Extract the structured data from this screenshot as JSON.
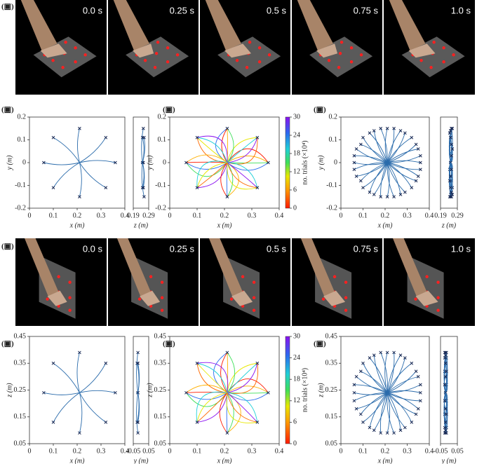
{
  "panels": [
    "(▣)",
    "(▣)",
    "(▣)",
    "(▣)",
    "(▣)",
    "(▣)",
    "(▣)",
    "(▣)"
  ],
  "frame_strips": [
    {
      "times": [
        "0.0 s",
        "0.25 s",
        "0.5 s",
        "0.75 s",
        "1.0 s"
      ]
    },
    {
      "times": [
        "0.0 s",
        "0.25 s",
        "0.5 s",
        "0.75 s",
        "1.0 s"
      ]
    }
  ],
  "chart_data": [
    {
      "type": "scatter",
      "xlabel": "x (m)",
      "ylabel": "y (m)",
      "xlim": [
        0,
        0.4
      ],
      "xticks": [
        0,
        0.1,
        0.2,
        0.3,
        0.4
      ],
      "ylim": [
        -0.2,
        0.2
      ],
      "yticks": [
        -0.2,
        -0.1,
        0,
        0.1,
        0.2
      ],
      "color": "#2a6bab",
      "start": {
        "x": 0.21,
        "y": 0
      },
      "targets": {
        "x": [
          0.36,
          0.32,
          0.21,
          0.1,
          0.06,
          0.1,
          0.21,
          0.32
        ],
        "values": [
          0,
          0.11,
          0.15,
          0.11,
          0,
          -0.11,
          -0.15,
          -0.11
        ]
      }
    },
    {
      "type": "scatter",
      "xlabel": "z (m)",
      "xlim": [
        0.19,
        0.29
      ],
      "xticks": [
        0.19,
        0.29
      ],
      "ylim": [
        -0.2,
        0.2
      ],
      "color": "#2a6bab",
      "start": {
        "x": 0.25,
        "y": 0
      },
      "targets": {
        "x": [
          0.255,
          0.26,
          0.255,
          0.25,
          0.25,
          0.255,
          0.26,
          0.25
        ],
        "values": [
          0,
          0.11,
          0.15,
          0.11,
          0,
          -0.11,
          -0.15,
          -0.11
        ]
      }
    },
    {
      "type": "scatter",
      "xlabel": "x (m)",
      "ylabel": "y (m)",
      "xlim": [
        0,
        0.4
      ],
      "xticks": [
        0,
        0.1,
        0.2,
        0.3,
        0.4
      ],
      "ylim": [
        -0.2,
        0.2
      ],
      "yticks": [
        -0.2,
        -0.1,
        0,
        0.1,
        0.2
      ],
      "color": "#2a6bab",
      "multicolor": true,
      "colorbar": {
        "label": "no. trials (×10⁴)",
        "lim": [
          0,
          30
        ],
        "ticks": [
          0,
          6,
          12,
          18,
          24,
          30
        ]
      },
      "start": {
        "x": 0.21,
        "y": 0
      },
      "targets": {
        "x": [
          0.36,
          0.32,
          0.21,
          0.1,
          0.06,
          0.1,
          0.21,
          0.32
        ],
        "values": [
          0,
          0.11,
          0.15,
          0.11,
          0,
          -0.11,
          -0.15,
          -0.11
        ]
      }
    },
    {
      "type": "scatter",
      "xlabel": "x (m)",
      "ylabel": "y (m)",
      "xlim": [
        0,
        0.4
      ],
      "xticks": [
        0,
        0.1,
        0.2,
        0.3,
        0.4
      ],
      "ylim": [
        -0.2,
        0.2
      ],
      "yticks": [
        -0.2,
        -0.1,
        0,
        0.1,
        0.2
      ],
      "color": "#2a6bab",
      "start": {
        "x": 0.21,
        "y": 0
      },
      "targets": {
        "x": [
          0.36,
          0.36,
          0.35,
          0.34,
          0.32,
          0.29,
          0.27,
          0.24,
          0.21,
          0.18,
          0.15,
          0.13,
          0.1,
          0.09,
          0.07,
          0.06,
          0.06,
          0.06,
          0.07,
          0.09,
          0.1,
          0.13,
          0.15,
          0.18,
          0.21,
          0.24,
          0.27,
          0.29,
          0.32,
          0.34,
          0.35,
          0.36
        ],
        "values": [
          0,
          0.03,
          0.06,
          0.08,
          0.11,
          0.13,
          0.14,
          0.15,
          0.15,
          0.15,
          0.14,
          0.13,
          0.11,
          0.08,
          0.06,
          0.03,
          0,
          -0.03,
          -0.06,
          -0.08,
          -0.11,
          -0.13,
          -0.14,
          -0.15,
          -0.15,
          -0.15,
          -0.14,
          -0.13,
          -0.11,
          -0.08,
          -0.06,
          -0.03
        ]
      }
    },
    {
      "type": "scatter",
      "xlabel": "z (m)",
      "xlim": [
        0.19,
        0.29
      ],
      "xticks": [
        0.19,
        0.29
      ],
      "ylim": [
        -0.2,
        0.2
      ],
      "color": "#2a6bab",
      "start": {
        "x": 0.25,
        "y": 0
      },
      "targets": {
        "x": [
          0.25,
          0.255,
          0.26,
          0.255,
          0.25,
          0.245,
          0.25,
          0.255,
          0.26,
          0.255,
          0.25,
          0.245,
          0.25,
          0.255,
          0.26,
          0.255,
          0.25,
          0.245,
          0.25,
          0.255,
          0.26,
          0.255,
          0.25,
          0.245,
          0.25,
          0.255,
          0.26,
          0.255,
          0.25,
          0.245,
          0.25,
          0.255
        ],
        "values": [
          0,
          0.03,
          0.06,
          0.08,
          0.11,
          0.13,
          0.14,
          0.15,
          0.15,
          0.15,
          0.14,
          0.13,
          0.11,
          0.08,
          0.06,
          0.03,
          0,
          -0.03,
          -0.06,
          -0.08,
          -0.11,
          -0.13,
          -0.14,
          -0.15,
          -0.15,
          -0.15,
          -0.14,
          -0.13,
          -0.11,
          -0.08,
          -0.06,
          -0.03
        ]
      }
    },
    {
      "type": "scatter",
      "xlabel": "x (m)",
      "ylabel": "z (m)",
      "xlim": [
        0,
        0.4
      ],
      "xticks": [
        0,
        0.1,
        0.2,
        0.3,
        0.4
      ],
      "ylim": [
        0.05,
        0.45
      ],
      "yticks": [
        0.05,
        0.15,
        0.25,
        0.35,
        0.45
      ],
      "color": "#2a6bab",
      "start": {
        "x": 0.21,
        "y": 0.24
      },
      "targets": {
        "x": [
          0.36,
          0.32,
          0.21,
          0.1,
          0.06,
          0.1,
          0.21,
          0.32
        ],
        "values": [
          0.24,
          0.35,
          0.39,
          0.35,
          0.24,
          0.13,
          0.09,
          0.13
        ]
      }
    },
    {
      "type": "scatter",
      "xlabel": "y (m)",
      "xlim": [
        -0.05,
        0.05
      ],
      "xticks": [
        -0.05,
        0.05
      ],
      "ylim": [
        0.05,
        0.45
      ],
      "color": "#2a6bab",
      "start": {
        "x": -0.02,
        "y": 0.24
      },
      "targets": {
        "x": [
          -0.02,
          -0.02,
          -0.02,
          -0.025,
          -0.02,
          -0.02,
          -0.02,
          -0.025
        ],
        "values": [
          0.24,
          0.35,
          0.39,
          0.35,
          0.24,
          0.13,
          0.09,
          0.13
        ]
      }
    },
    {
      "type": "scatter",
      "xlabel": "x (m)",
      "ylabel": "z (m)",
      "xlim": [
        0,
        0.4
      ],
      "xticks": [
        0,
        0.1,
        0.2,
        0.3,
        0.4
      ],
      "ylim": [
        0.05,
        0.45
      ],
      "yticks": [
        0.05,
        0.15,
        0.25,
        0.35,
        0.45
      ],
      "color": "#2a6bab",
      "multicolor": true,
      "colorbar": {
        "label": "no. trials (×10⁴)",
        "lim": [
          0,
          30
        ],
        "ticks": [
          0,
          6,
          12,
          18,
          24,
          30
        ]
      },
      "start": {
        "x": 0.21,
        "y": 0.24
      },
      "targets": {
        "x": [
          0.36,
          0.32,
          0.21,
          0.1,
          0.06,
          0.1,
          0.21,
          0.32
        ],
        "values": [
          0.24,
          0.35,
          0.39,
          0.35,
          0.24,
          0.13,
          0.09,
          0.13
        ]
      }
    },
    {
      "type": "scatter",
      "xlabel": "x (m)",
      "ylabel": "z (m)",
      "xlim": [
        0,
        0.4
      ],
      "xticks": [
        0,
        0.1,
        0.2,
        0.3,
        0.4
      ],
      "ylim": [
        0.05,
        0.45
      ],
      "yticks": [
        0.05,
        0.15,
        0.25,
        0.35,
        0.45
      ],
      "color": "#2a6bab",
      "start": {
        "x": 0.21,
        "y": 0.24
      },
      "targets": {
        "x": [
          0.36,
          0.36,
          0.35,
          0.34,
          0.32,
          0.29,
          0.27,
          0.24,
          0.21,
          0.18,
          0.15,
          0.13,
          0.1,
          0.09,
          0.07,
          0.06,
          0.06,
          0.06,
          0.07,
          0.09,
          0.1,
          0.13,
          0.15,
          0.18,
          0.21,
          0.24,
          0.27,
          0.29,
          0.32,
          0.34,
          0.35,
          0.36
        ],
        "values": [
          0.24,
          0.27,
          0.3,
          0.32,
          0.35,
          0.37,
          0.38,
          0.39,
          0.39,
          0.39,
          0.38,
          0.37,
          0.35,
          0.32,
          0.3,
          0.27,
          0.24,
          0.21,
          0.18,
          0.16,
          0.13,
          0.11,
          0.1,
          0.09,
          0.09,
          0.09,
          0.1,
          0.11,
          0.13,
          0.16,
          0.18,
          0.21
        ]
      }
    },
    {
      "type": "scatter",
      "xlabel": "y (m)",
      "xlim": [
        -0.05,
        0.05
      ],
      "xticks": [
        -0.05,
        0.05
      ],
      "ylim": [
        0.05,
        0.45
      ],
      "color": "#2a6bab",
      "start": {
        "x": -0.02,
        "y": 0.24
      },
      "targets": {
        "x": [
          -0.02,
          -0.015,
          -0.02,
          -0.025,
          -0.02,
          -0.015,
          -0.02,
          -0.025,
          -0.02,
          -0.015,
          -0.02,
          -0.025,
          -0.02,
          -0.015,
          -0.02,
          -0.025,
          -0.02,
          -0.015,
          -0.02,
          -0.025,
          -0.02,
          -0.015,
          -0.02,
          -0.025,
          -0.02,
          -0.015,
          -0.02,
          -0.025,
          -0.02,
          -0.015,
          -0.02,
          -0.025
        ],
        "values": [
          0.24,
          0.27,
          0.3,
          0.32,
          0.35,
          0.37,
          0.38,
          0.39,
          0.39,
          0.39,
          0.38,
          0.37,
          0.35,
          0.32,
          0.3,
          0.27,
          0.24,
          0.21,
          0.18,
          0.16,
          0.13,
          0.11,
          0.1,
          0.09,
          0.09,
          0.09,
          0.1,
          0.11,
          0.13,
          0.16,
          0.18,
          0.21
        ]
      }
    }
  ]
}
